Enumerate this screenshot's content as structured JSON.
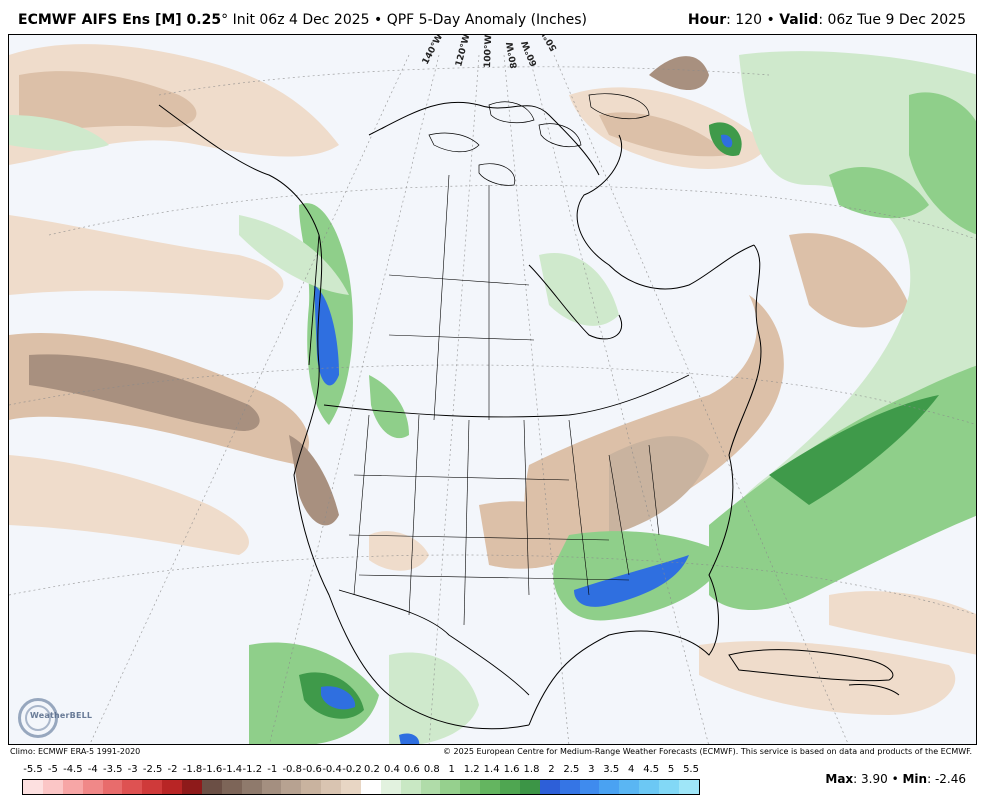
{
  "header": {
    "model": "ECMWF AIFS Ens [M] 0.25",
    "degree": "°",
    "init": "Init 06z 4 Dec 2025",
    "bullet": "•",
    "product": "QPF 5-Day Anomaly (Inches)",
    "hour_label": "Hour",
    "hour_value": ": 120",
    "valid_label": "Valid",
    "valid_value": ": 06z Tue 9 Dec 2025"
  },
  "map": {
    "meridians": [
      "140°W",
      "120°W",
      "100°W",
      "80°W",
      "60°W",
      "50°W"
    ],
    "logo_text": "WeatherBELL",
    "colors": {
      "ocean": "#f3f6fb",
      "dry_light": "#efdccb",
      "dry_mid": "#dcc0a8",
      "dry_dark": "#a8907f",
      "wet_light": "#cfe9cc",
      "wet_mid": "#8fcf8a",
      "wet_dark": "#3f9a4a",
      "wet_blue": "#2f6fe0"
    }
  },
  "footer": {
    "climo": "Climo: ECMWF ERA-5 1991-2020",
    "copyright": "© 2025 European Centre for Medium-Range Weather Forecasts (ECMWF). This service is based on data and products of the ECMWF."
  },
  "colorbar": {
    "ticks": [
      "-5.5",
      "-5",
      "-4.5",
      "-4",
      "-3.5",
      "-3",
      "-2.5",
      "-2",
      "-1.8",
      "-1.6",
      "-1.4",
      "-1.2",
      "-1",
      "-0.8",
      "-0.6",
      "-0.4",
      "-0.2",
      "0.2",
      "0.4",
      "0.6",
      "0.8",
      "1",
      "1.2",
      "1.4",
      "1.6",
      "1.8",
      "2",
      "2.5",
      "3",
      "3.5",
      "4",
      "4.5",
      "5",
      "5.5"
    ],
    "colors": [
      "#fde0e0",
      "#fbc6c6",
      "#f7a6a6",
      "#f08888",
      "#e86c6c",
      "#de5252",
      "#cf3a3a",
      "#b82525",
      "#8e1a1a",
      "#6b4f45",
      "#7d6558",
      "#8f7a6c",
      "#a48f80",
      "#b7a291",
      "#c9b39f",
      "#d9c4b1",
      "#e8d6c4",
      "#ffffff",
      "#e2f2df",
      "#c9e8c4",
      "#b0dca9",
      "#96d08e",
      "#7cc375",
      "#64b560",
      "#4fa651",
      "#3c9546",
      "#2d5fd8",
      "#3575e5",
      "#3f8bee",
      "#4aa2f2",
      "#5ab6f3",
      "#6cc8f4",
      "#82d8f6",
      "#9fe6f8"
    ]
  },
  "stats": {
    "max_label": "Max",
    "max_value": ": 3.90",
    "sep": "•",
    "min_label": "Min",
    "min_value": ": -2.46"
  }
}
